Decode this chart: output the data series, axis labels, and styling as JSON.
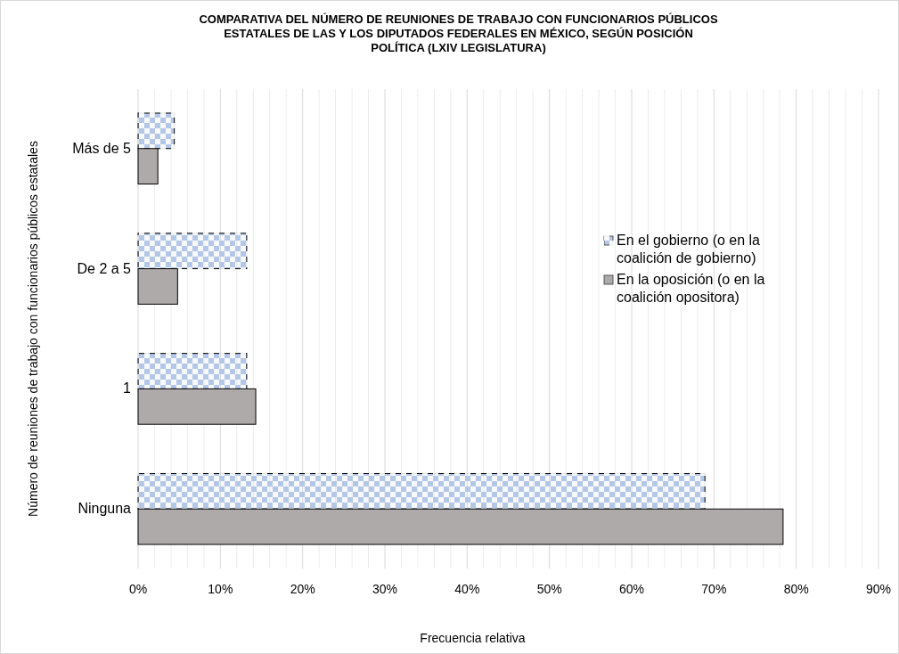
{
  "chart_data": {
    "type": "bar",
    "orientation": "horizontal",
    "title": "COMPARATIVA DEL NÚMERO DE REUNIONES DE TRABAJO CON FUNCIONARIOS PÚBLICOS ESTATALES DE LAS Y LOS DIPUTADOS FEDERALES EN MÉXICO, SEGÚN POSICIÓN POLÍTICA (LXIV LEGISLATURA)",
    "xlabel": "Frecuencia relativa",
    "ylabel": "Número de reuniones de trabajo con funcionarios públicos estatales",
    "categories": [
      "Más de 5",
      "De 2 a 5",
      "1",
      "Ninguna"
    ],
    "series": [
      {
        "name": "En el gobierno (o en la coalición de gobierno)",
        "color": "#b4c7e7",
        "values": [
          4.4,
          13.2,
          13.2,
          68.9
        ]
      },
      {
        "name": "En la oposición (o en la coalición opositora)",
        "color": "#aeaaaa",
        "values": [
          2.4,
          4.8,
          14.3,
          78.4
        ]
      }
    ],
    "xlim": [
      0,
      90
    ],
    "xticks": [
      {
        "value": 0,
        "label": "0%"
      },
      {
        "value": 2,
        "label": null
      },
      {
        "value": 4,
        "label": null
      },
      {
        "value": 6,
        "label": null
      },
      {
        "value": 8,
        "label": null
      },
      {
        "value": 10,
        "label": "10%"
      },
      {
        "value": 12,
        "label": null
      },
      {
        "value": 14,
        "label": null
      },
      {
        "value": 16,
        "label": null
      },
      {
        "value": 18,
        "label": null
      },
      {
        "value": 20,
        "label": "20%"
      },
      {
        "value": 22,
        "label": null
      },
      {
        "value": 24,
        "label": null
      },
      {
        "value": 26,
        "label": null
      },
      {
        "value": 28,
        "label": null
      },
      {
        "value": 30,
        "label": "30%"
      },
      {
        "value": 32,
        "label": null
      },
      {
        "value": 34,
        "label": null
      },
      {
        "value": 36,
        "label": null
      },
      {
        "value": 38,
        "label": null
      },
      {
        "value": 40,
        "label": "40%"
      },
      {
        "value": 42,
        "label": null
      },
      {
        "value": 44,
        "label": null
      },
      {
        "value": 46,
        "label": null
      },
      {
        "value": 48,
        "label": null
      },
      {
        "value": 50,
        "label": "50%"
      },
      {
        "value": 52,
        "label": null
      },
      {
        "value": 54,
        "label": null
      },
      {
        "value": 56,
        "label": null
      },
      {
        "value": 58,
        "label": null
      },
      {
        "value": 60,
        "label": "60%"
      },
      {
        "value": 62,
        "label": null
      },
      {
        "value": 64,
        "label": null
      },
      {
        "value": 66,
        "label": null
      },
      {
        "value": 68,
        "label": null
      },
      {
        "value": 70,
        "label": "70%"
      },
      {
        "value": 72,
        "label": null
      },
      {
        "value": 74,
        "label": null
      },
      {
        "value": 76,
        "label": null
      },
      {
        "value": 78,
        "label": null
      },
      {
        "value": 80,
        "label": "80%"
      },
      {
        "value": 82,
        "label": null
      },
      {
        "value": 84,
        "label": null
      },
      {
        "value": 86,
        "label": null
      },
      {
        "value": 88,
        "label": null
      },
      {
        "value": 90,
        "label": "90%"
      }
    ],
    "grid": "x",
    "legend": "right"
  }
}
